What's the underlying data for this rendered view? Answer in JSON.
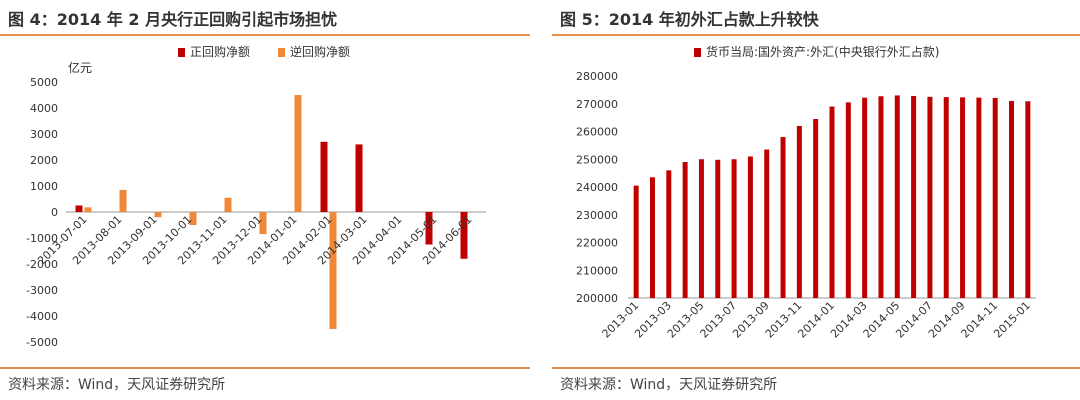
{
  "left": {
    "title": "图 4：2014 年 2 月央行正回购引起市场担忧",
    "source": "资料来源：Wind，天风证券研究所"
  },
  "right": {
    "title": "图 5：2014 年初外汇占款上升较快",
    "source": "资料来源：Wind，天风证券研究所"
  },
  "colors": {
    "red": "#c00000",
    "orange": "#f0883a",
    "accent": "#e8914a"
  },
  "chart_data": [
    {
      "type": "bar",
      "unit_label": "亿元",
      "categories": [
        "2013-07-01",
        "2013-08-01",
        "2013-09-01",
        "2013-10-01",
        "2013-11-01",
        "2013-12-01",
        "2014-01-01",
        "2014-02-01",
        "2014-03-01",
        "2014-04-01",
        "2014-05-01",
        "2014-06-01"
      ],
      "series": [
        {
          "name": "正回购净额",
          "color": "#c00000",
          "values": [
            250,
            0,
            0,
            0,
            0,
            0,
            0,
            2700,
            2600,
            0,
            -1250,
            -1800
          ]
        },
        {
          "name": "逆回购净额",
          "color": "#f0883a",
          "values": [
            180,
            850,
            -200,
            -500,
            550,
            -850,
            4500,
            -4500,
            0,
            0,
            0,
            0
          ]
        }
      ],
      "ylim": [
        -5000,
        5000
      ],
      "yticks": [
        5000,
        4000,
        3000,
        2000,
        1000,
        0,
        -1000,
        -2000,
        -3000,
        -4000,
        -5000
      ],
      "legend_position": "top-center"
    },
    {
      "type": "bar",
      "categories": [
        "2013-01",
        "2013-02",
        "2013-03",
        "2013-04",
        "2013-05",
        "2013-06",
        "2013-07",
        "2013-08",
        "2013-09",
        "2013-10",
        "2013-11",
        "2013-12",
        "2014-01",
        "2014-02",
        "2014-03",
        "2014-04",
        "2014-05",
        "2014-06",
        "2014-07",
        "2014-08",
        "2014-09",
        "2014-10",
        "2014-11",
        "2014-12",
        "2015-01"
      ],
      "xtick_labels": [
        "2013-01",
        "2013-03",
        "2013-05",
        "2013-07",
        "2013-09",
        "2013-11",
        "2014-01",
        "2014-03",
        "2014-05",
        "2014-07",
        "2014-09",
        "2014-11",
        "2015-01"
      ],
      "series": [
        {
          "name": "货币当局:国外资产:外汇(中央银行外汇占款)",
          "color": "#c00000",
          "values": [
            240500,
            243500,
            246000,
            249000,
            250000,
            249800,
            250000,
            251000,
            253500,
            258000,
            262000,
            264500,
            269000,
            270500,
            272200,
            272700,
            273000,
            272800,
            272500,
            272400,
            272300,
            272200,
            272100,
            271000,
            270900
          ]
        }
      ],
      "ylim": [
        200000,
        280000
      ],
      "yticks": [
        280000,
        270000,
        260000,
        250000,
        240000,
        230000,
        220000,
        210000,
        200000
      ],
      "legend_position": "top-center"
    }
  ]
}
